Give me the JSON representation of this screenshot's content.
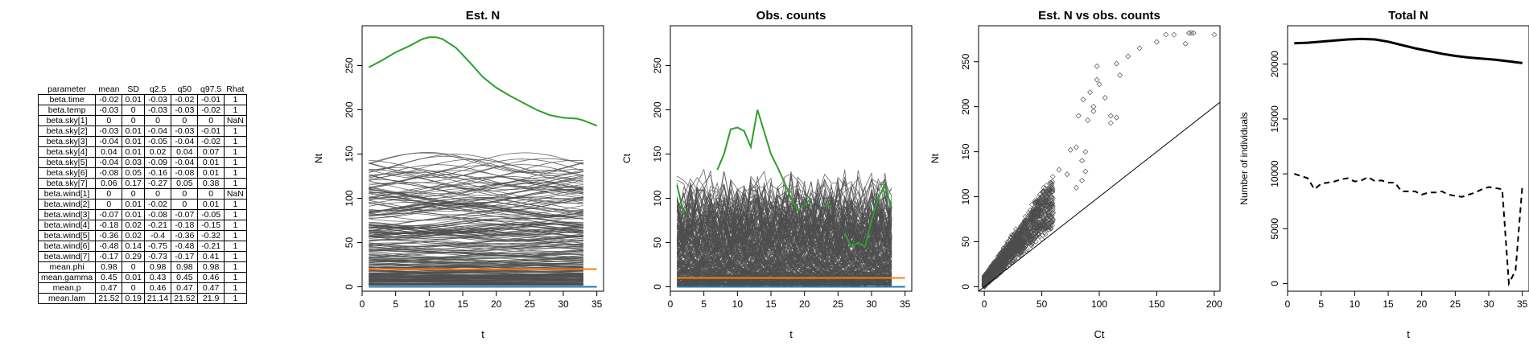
{
  "table": {
    "headers": [
      "parameter",
      "mean",
      "SD",
      "q2.5",
      "q50",
      "q97.5",
      "Rhat"
    ],
    "rows": [
      [
        "beta.time",
        "-0.02",
        "0.01",
        "-0.03",
        "-0.02",
        "-0.01",
        "1"
      ],
      [
        "beta.temp",
        "-0.03",
        "0",
        "-0.03",
        "-0.03",
        "-0.02",
        "1"
      ],
      [
        "beta.sky[1]",
        "0",
        "0",
        "0",
        "0",
        "0",
        "NaN"
      ],
      [
        "beta.sky[2]",
        "-0.03",
        "0.01",
        "-0.04",
        "-0.03",
        "-0.01",
        "1"
      ],
      [
        "beta.sky[3]",
        "-0.04",
        "0.01",
        "-0.05",
        "-0.04",
        "-0.02",
        "1"
      ],
      [
        "beta.sky[4]",
        "0.04",
        "0.01",
        "0.02",
        "0.04",
        "0.07",
        "1"
      ],
      [
        "beta.sky[5]",
        "-0.04",
        "0.03",
        "-0.09",
        "-0.04",
        "0.01",
        "1"
      ],
      [
        "beta.sky[6]",
        "-0.08",
        "0.05",
        "-0.16",
        "-0.08",
        "0.01",
        "1"
      ],
      [
        "beta.sky[7]",
        "0.06",
        "0.17",
        "-0.27",
        "0.05",
        "0.38",
        "1"
      ],
      [
        "beta.wind[1]",
        "0",
        "0",
        "0",
        "0",
        "0",
        "NaN"
      ],
      [
        "beta.wind[2]",
        "0",
        "0.01",
        "-0.02",
        "0",
        "0.01",
        "1"
      ],
      [
        "beta.wind[3]",
        "-0.07",
        "0.01",
        "-0.08",
        "-0.07",
        "-0.05",
        "1"
      ],
      [
        "beta.wind[4]",
        "-0.18",
        "0.02",
        "-0.21",
        "-0.18",
        "-0.15",
        "1"
      ],
      [
        "beta.wind[5]",
        "-0.36",
        "0.02",
        "-0.4",
        "-0.36",
        "-0.32",
        "1"
      ],
      [
        "beta.wind[6]",
        "-0.48",
        "0.14",
        "-0.75",
        "-0.48",
        "-0.21",
        "1"
      ],
      [
        "beta.wind[7]",
        "-0.17",
        "0.29",
        "-0.73",
        "-0.17",
        "0.41",
        "1"
      ],
      [
        "mean.phi",
        "0.98",
        "0",
        "0.98",
        "0.98",
        "0.98",
        "1"
      ],
      [
        "mean.gamma",
        "0.45",
        "0.01",
        "0.43",
        "0.45",
        "0.46",
        "1"
      ],
      [
        "mean.p",
        "0.47",
        "0",
        "0.46",
        "0.47",
        "0.47",
        "1"
      ],
      [
        "mean.lam",
        "21.52",
        "0.19",
        "21.14",
        "21.52",
        "21.9",
        "1"
      ]
    ]
  },
  "chart_data": [
    {
      "type": "line",
      "title": "Est. N",
      "xlabel": "t",
      "ylabel": "Nt",
      "xlim": [
        0,
        36
      ],
      "ylim": [
        -5,
        295
      ],
      "xticks": [
        "0",
        "5",
        "10",
        "15",
        "20",
        "25",
        "30",
        "35"
      ],
      "yticks": [
        "0",
        "50",
        "100",
        "150",
        "200",
        "250"
      ],
      "grid": false,
      "background_lines": {
        "color": "#4d4d4d",
        "count": 260,
        "range_approx": [
          0,
          155
        ]
      },
      "series": [
        {
          "color": "#2ca02c",
          "x": [
            1,
            3,
            5,
            7,
            9,
            10,
            11,
            12,
            14,
            16,
            18,
            20,
            22,
            24,
            26,
            28,
            30,
            32,
            33,
            34,
            35
          ],
          "values": [
            248,
            256,
            265,
            272,
            280,
            282,
            282,
            280,
            270,
            254,
            237,
            225,
            216,
            208,
            200,
            194,
            191,
            190,
            188,
            185,
            182
          ]
        },
        {
          "color": "#ff7f0e",
          "x": [
            1,
            35
          ],
          "values": [
            20,
            20
          ]
        },
        {
          "color": "#1f77b4",
          "x": [
            1,
            35
          ],
          "values": [
            0,
            0
          ]
        }
      ]
    },
    {
      "type": "line",
      "title": "Obs. counts",
      "xlabel": "t",
      "ylabel": "Ct",
      "xlim": [
        0,
        36
      ],
      "ylim": [
        -5,
        295
      ],
      "xticks": [
        "0",
        "5",
        "10",
        "15",
        "20",
        "25",
        "30",
        "35"
      ],
      "yticks": [
        "0",
        "50",
        "100",
        "150",
        "200",
        "250"
      ],
      "grid": false,
      "background_lines": {
        "color": "#4d4d4d",
        "count": 260,
        "range_approx": [
          0,
          100
        ]
      },
      "series": [
        {
          "color": "#2ca02c",
          "x": [
            1,
            2,
            null,
            7,
            8,
            9,
            10,
            11,
            12,
            13,
            14,
            15,
            16,
            17,
            18,
            19,
            20,
            21,
            null,
            23,
            24,
            null,
            26,
            27,
            28,
            29,
            30,
            31,
            32,
            33
          ],
          "values": [
            115,
            82,
            null,
            132,
            150,
            178,
            180,
            176,
            158,
            200,
            175,
            150,
            135,
            118,
            100,
            86,
            92,
            100,
            null,
            95,
            90,
            null,
            60,
            45,
            50,
            45,
            75,
            100,
            115,
            88
          ]
        },
        {
          "color": "#ff7f0e",
          "x": [
            1,
            35
          ],
          "values": [
            10,
            10
          ]
        },
        {
          "color": "#1f77b4",
          "x": [
            1,
            35
          ],
          "values": [
            0,
            0
          ]
        }
      ]
    },
    {
      "type": "scatter",
      "title": "Est. N vs obs. counts",
      "xlabel": "Ct",
      "ylabel": "Nt",
      "xlim": [
        -5,
        205
      ],
      "ylim": [
        -5,
        290
      ],
      "xticks": [
        "0",
        "50",
        "100",
        "150",
        "200"
      ],
      "yticks": [
        "0",
        "50",
        "100",
        "150",
        "200",
        "250"
      ],
      "grid": false,
      "reference_line": {
        "slope": 1,
        "intercept": 0
      },
      "series": [
        {
          "color": "#4d4d4d",
          "marker": "diamond-open",
          "x": [
            115,
            125,
            135,
            150,
            165,
            178,
            200,
            175,
            158,
            180,
            182,
            118,
            100,
            92,
            86,
            95,
            105,
            95,
            110,
            98,
            115,
            98,
            110,
            82,
            75,
            90,
            88,
            80,
            88,
            85,
            80,
            85,
            72,
            65
          ],
          "values": [
            248,
            256,
            265,
            272,
            280,
            282,
            280,
            270,
            280,
            282,
            282,
            235,
            225,
            216,
            208,
            200,
            210,
            195,
            190,
            230,
            188,
            245,
            182,
            190,
            152,
            185,
            150,
            155,
            128,
            118,
            110,
            140,
            125,
            130
          ]
        }
      ]
    },
    {
      "type": "line",
      "title": "Total N",
      "xlabel": "t",
      "ylabel": "Number of individuals",
      "xlim": [
        0,
        36
      ],
      "ylim": [
        -700,
        23500
      ],
      "xticks": [
        "0",
        "5",
        "10",
        "15",
        "20",
        "25",
        "30",
        "35"
      ],
      "yticks": [
        "0",
        "5000",
        "10000",
        "15000",
        "20000"
      ],
      "grid": false,
      "series": [
        {
          "color": "#000000",
          "style": "solid",
          "width": 3,
          "x": [
            1,
            3,
            5,
            7,
            9,
            11,
            13,
            15,
            17,
            19,
            21,
            23,
            25,
            27,
            29,
            31,
            33,
            35
          ],
          "values": [
            21900,
            21950,
            22050,
            22150,
            22250,
            22300,
            22250,
            22050,
            21750,
            21450,
            21200,
            20950,
            20750,
            20600,
            20500,
            20400,
            20250,
            20100
          ]
        },
        {
          "color": "#000000",
          "style": "dashed",
          "width": 2,
          "x": [
            1,
            2,
            3,
            4,
            5,
            6,
            7,
            8,
            9,
            10,
            11,
            12,
            13,
            14,
            15,
            16,
            17,
            18,
            19,
            20,
            21,
            22,
            23,
            24,
            25,
            26,
            27,
            28,
            29,
            30,
            31,
            32,
            33,
            34,
            35
          ],
          "values": [
            10000,
            9800,
            9600,
            8600,
            9100,
            9200,
            9300,
            9500,
            9600,
            9300,
            9400,
            9700,
            9350,
            9400,
            9200,
            9200,
            8400,
            8400,
            8400,
            8100,
            8300,
            8300,
            8400,
            8100,
            8000,
            7900,
            8100,
            8300,
            8600,
            8800,
            8700,
            8600,
            0,
            1200,
            8900
          ]
        }
      ]
    }
  ]
}
